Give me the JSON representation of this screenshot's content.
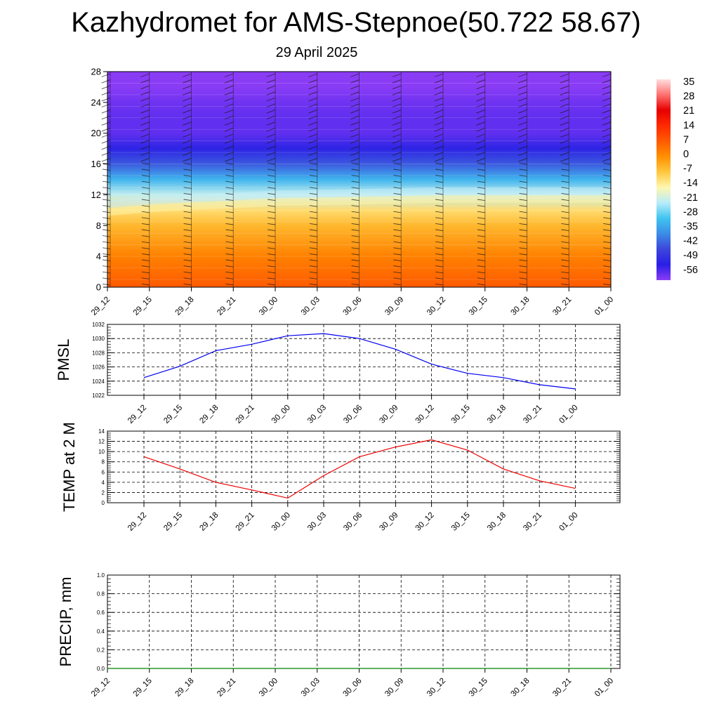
{
  "title": "Kazhydromet for AMS-Stepnoe(50.722 58.67)",
  "subtitle": "29 April 2025",
  "time_labels": [
    "29_12",
    "29_15",
    "29_18",
    "29_21",
    "30_00",
    "30_03",
    "30_06",
    "30_09",
    "30_12",
    "30_15",
    "30_18",
    "30_21",
    "01_00"
  ],
  "chart_data": [
    {
      "type": "heatmap",
      "title": "",
      "x": [
        "29_12",
        "29_15",
        "29_18",
        "29_21",
        "30_00",
        "30_03",
        "30_06",
        "30_09",
        "30_12",
        "30_15",
        "30_18",
        "30_21",
        "01_00"
      ],
      "ylim": [
        0,
        28
      ],
      "yticks": [
        0,
        4,
        8,
        12,
        16,
        20,
        24,
        28
      ],
      "freezing_level": [
        9.8,
        10.3,
        10.6,
        10.8,
        11.1,
        11.2,
        11.3,
        11.4,
        11.5,
        11.5,
        11.5,
        11.5,
        11.5
      ],
      "profile": [
        {
          "height": 0,
          "value": 7
        },
        {
          "height": 4,
          "value": 2
        },
        {
          "height": 8,
          "value": -5
        },
        {
          "height": 10,
          "value": -10
        },
        {
          "height": 12,
          "value": -20
        },
        {
          "height": 14,
          "value": -30
        },
        {
          "height": 16,
          "value": -40
        },
        {
          "height": 18,
          "value": -48
        },
        {
          "height": 20,
          "value": -53
        },
        {
          "height": 22,
          "value": -53
        },
        {
          "height": 24,
          "value": -54
        },
        {
          "height": 26,
          "value": -57
        },
        {
          "height": 28,
          "value": -58
        }
      ],
      "colorbar": {
        "labels": [
          "35",
          "28",
          "21",
          "14",
          "7",
          "0",
          "-7",
          "-14",
          "-21",
          "-28",
          "-35",
          "-42",
          "-49",
          "-56"
        ],
        "colors": [
          "#ffdede",
          "#ff7070",
          "#e60000",
          "#ff2a00",
          "#ff5a00",
          "#ff9000",
          "#ffc840",
          "#fff7b0",
          "#b8ecfa",
          "#40c4f0",
          "#3c8ce6",
          "#3c46dc",
          "#2a1ee6",
          "#8a3cf5"
        ]
      },
      "wind_barbs": true
    },
    {
      "type": "line",
      "ylabel": "PMSL",
      "x": [
        "29_12",
        "29_15",
        "29_18",
        "29_21",
        "30_00",
        "30_03",
        "30_06",
        "30_09",
        "30_12",
        "30_15",
        "30_18",
        "30_21",
        "01_00"
      ],
      "series": [
        {
          "values": [
            1024.5,
            1026.1,
            1028.3,
            1029.2,
            1030.4,
            1030.7,
            1030.0,
            1028.5,
            1026.4,
            1025.1,
            1024.5,
            1023.5,
            1022.9
          ]
        }
      ],
      "ylim": [
        1022,
        1032
      ],
      "yticks": [
        "1022",
        "1024",
        "1026",
        "1028",
        "1030",
        "1032"
      ],
      "color": "#0000ee",
      "grid": true
    },
    {
      "type": "line",
      "ylabel": "TEMP at 2 M",
      "x": [
        "29_12",
        "29_15",
        "29_18",
        "29_21",
        "30_00",
        "30_03",
        "30_06",
        "30_09",
        "30_12",
        "30_15",
        "30_18",
        "30_21",
        "01_00"
      ],
      "series": [
        {
          "values": [
            9.0,
            6.6,
            4.0,
            2.5,
            0.9,
            5.3,
            9.0,
            10.9,
            12.3,
            10.3,
            6.6,
            4.3,
            2.8
          ]
        }
      ],
      "ylim": [
        0,
        14
      ],
      "yticks": [
        "0",
        "2",
        "4",
        "6",
        "8",
        "10",
        "12",
        "14"
      ],
      "color": "#ee0000",
      "grid": true
    },
    {
      "type": "line",
      "ylabel": "PRECIP, mm",
      "x": [
        "29_12",
        "29_15",
        "29_18",
        "29_21",
        "30_00",
        "30_03",
        "30_06",
        "30_09",
        "30_12",
        "30_15",
        "30_18",
        "30_21",
        "01_00"
      ],
      "series": [
        {
          "values": [
            0,
            0,
            0,
            0,
            0,
            0,
            0,
            0,
            0,
            0,
            0,
            0,
            0
          ]
        }
      ],
      "ylim": [
        0,
        1
      ],
      "yticks": [
        "0.0",
        "0.2",
        "0.4",
        "0.6",
        "0.8",
        "1.0"
      ],
      "color": "#008000",
      "grid": true
    }
  ]
}
